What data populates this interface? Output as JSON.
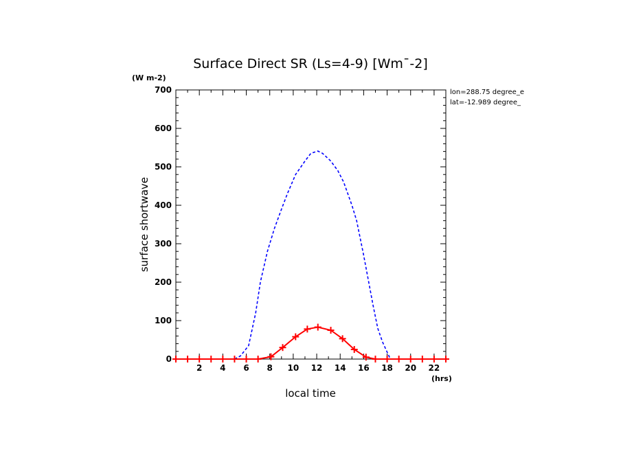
{
  "chart_data": {
    "type": "line",
    "title": "Surface Direct SR (Ls=4-9) [Wm¯-2]",
    "ylabel": "surface shortwave",
    "yunit": "(W m-2)",
    "xlabel": "local time",
    "xunit": "(hrs)",
    "xlim": [
      0,
      23
    ],
    "ylim": [
      0,
      700
    ],
    "xticks": [
      "2",
      "4",
      "6",
      "8",
      "10",
      "12",
      "14",
      "16",
      "18",
      "20",
      "22"
    ],
    "yticks": [
      "0",
      "100",
      "200",
      "300",
      "400",
      "500",
      "600",
      "700"
    ],
    "annotations": [
      "lon=288.75 degree_e",
      "lat=-12.989 degree_"
    ],
    "grid": false,
    "series": [
      {
        "color": "#0000ff",
        "style": "dashed",
        "points": [
          [
            5,
            0
          ],
          [
            5.5,
            8
          ],
          [
            6.2,
            35
          ],
          [
            6.8,
            120
          ],
          [
            7.2,
            200
          ],
          [
            7.8,
            280
          ],
          [
            8.4,
            340
          ],
          [
            9,
            390
          ],
          [
            9.5,
            430
          ],
          [
            10.2,
            480
          ],
          [
            11,
            515
          ],
          [
            11.5,
            535
          ],
          [
            12.1,
            541
          ],
          [
            12.5,
            535
          ],
          [
            13.2,
            515
          ],
          [
            13.8,
            490
          ],
          [
            14.3,
            460
          ],
          [
            15,
            400
          ],
          [
            15.4,
            360
          ],
          [
            16,
            270
          ],
          [
            16.4,
            205
          ],
          [
            16.8,
            140
          ],
          [
            17.2,
            80
          ],
          [
            17.6,
            45
          ],
          [
            18,
            18
          ],
          [
            18.2,
            5
          ],
          [
            18.3,
            0
          ]
        ]
      },
      {
        "color": "#ff0000",
        "style": "solid-plus",
        "points": [
          [
            0,
            0
          ],
          [
            1,
            0
          ],
          [
            2,
            0
          ],
          [
            3,
            0
          ],
          [
            4,
            0
          ],
          [
            5,
            0
          ],
          [
            6,
            0
          ],
          [
            7,
            0
          ],
          [
            8.1,
            6
          ],
          [
            9.1,
            30
          ],
          [
            10.2,
            58
          ],
          [
            11.2,
            78
          ],
          [
            12.1,
            83
          ],
          [
            13.2,
            75
          ],
          [
            14.2,
            53
          ],
          [
            15.2,
            25
          ],
          [
            16.2,
            5
          ],
          [
            17,
            0
          ],
          [
            18,
            0
          ],
          [
            19,
            0
          ],
          [
            20,
            0
          ],
          [
            21,
            0
          ],
          [
            22,
            0
          ],
          [
            23,
            0
          ]
        ]
      }
    ]
  }
}
